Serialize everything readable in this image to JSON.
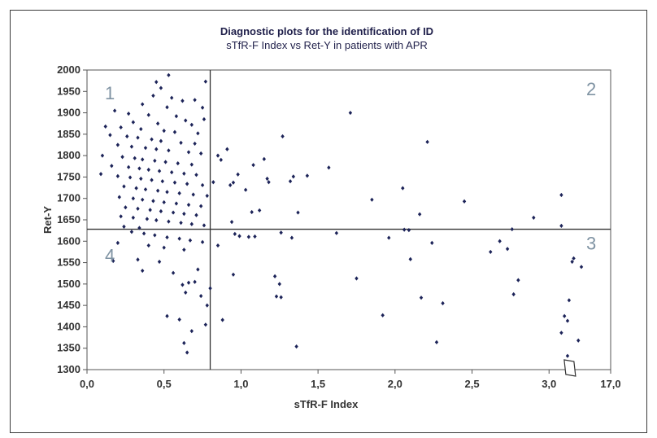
{
  "chart_data": {
    "type": "scatter",
    "title": "Diagnostic plots for the identification of ID",
    "subtitle": "sTfR-F Index vs Ret-Y in patients with APR",
    "xlabel": "sTfR-F Index",
    "ylabel": "Ret-Y",
    "xlim": [
      0,
      3.4
    ],
    "ylim": [
      1300,
      2000
    ],
    "x_scale_note": "axis break between 3.0 and 3.4; last tick printed as 17,0",
    "x_ticks": [
      "0,0",
      "0,5",
      "1,0",
      "1,5",
      "2,0",
      "2,5",
      "3,0",
      "17,0"
    ],
    "y_ticks": [
      "1300",
      "1350",
      "1400",
      "1450",
      "1500",
      "1550",
      "1600",
      "1650",
      "1700",
      "1750",
      "1800",
      "1850",
      "1900",
      "1950",
      "2000"
    ],
    "cutoff_x": 0.8,
    "cutoff_y": 1628,
    "quadrants": [
      "1",
      "2",
      "3",
      "4"
    ],
    "colors": {
      "points": "#1c2358",
      "lines": "#333333",
      "quadrant_labels": "#7f93a3",
      "title": "#1f1f4a"
    },
    "grid": false,
    "legend": "none",
    "points": [
      [
        0.53,
        1988
      ],
      [
        0.45,
        1972
      ],
      [
        0.77,
        1973
      ],
      [
        0.48,
        1958
      ],
      [
        0.43,
        1940
      ],
      [
        0.55,
        1935
      ],
      [
        0.62,
        1928
      ],
      [
        0.7,
        1930
      ],
      [
        0.36,
        1920
      ],
      [
        0.52,
        1913
      ],
      [
        0.75,
        1912
      ],
      [
        0.18,
        1905
      ],
      [
        0.27,
        1898
      ],
      [
        0.4,
        1895
      ],
      [
        0.58,
        1892
      ],
      [
        0.64,
        1882
      ],
      [
        0.76,
        1885
      ],
      [
        0.3,
        1878
      ],
      [
        0.46,
        1875
      ],
      [
        0.68,
        1872
      ],
      [
        0.12,
        1868
      ],
      [
        0.22,
        1866
      ],
      [
        0.35,
        1862
      ],
      [
        0.5,
        1858
      ],
      [
        0.57,
        1855
      ],
      [
        0.72,
        1852
      ],
      [
        0.15,
        1848
      ],
      [
        0.26,
        1845
      ],
      [
        0.33,
        1842
      ],
      [
        0.42,
        1838
      ],
      [
        0.48,
        1834
      ],
      [
        0.61,
        1830
      ],
      [
        0.7,
        1828
      ],
      [
        0.2,
        1825
      ],
      [
        0.29,
        1821
      ],
      [
        0.38,
        1818
      ],
      [
        0.45,
        1815
      ],
      [
        0.53,
        1812
      ],
      [
        0.66,
        1808
      ],
      [
        0.74,
        1805
      ],
      [
        0.1,
        1800
      ],
      [
        0.23,
        1797
      ],
      [
        0.31,
        1794
      ],
      [
        0.36,
        1791
      ],
      [
        0.44,
        1788
      ],
      [
        0.51,
        1785
      ],
      [
        0.59,
        1782
      ],
      [
        0.68,
        1779
      ],
      [
        0.16,
        1776
      ],
      [
        0.27,
        1773
      ],
      [
        0.34,
        1770
      ],
      [
        0.4,
        1767
      ],
      [
        0.47,
        1764
      ],
      [
        0.55,
        1761
      ],
      [
        0.63,
        1758
      ],
      [
        0.71,
        1755
      ],
      [
        0.09,
        1757
      ],
      [
        0.2,
        1752
      ],
      [
        0.28,
        1749
      ],
      [
        0.35,
        1746
      ],
      [
        0.42,
        1743
      ],
      [
        0.49,
        1740
      ],
      [
        0.57,
        1737
      ],
      [
        0.65,
        1734
      ],
      [
        0.75,
        1731
      ],
      [
        0.24,
        1728
      ],
      [
        0.32,
        1724
      ],
      [
        0.38,
        1721
      ],
      [
        0.46,
        1718
      ],
      [
        0.52,
        1715
      ],
      [
        0.6,
        1712
      ],
      [
        0.69,
        1709
      ],
      [
        0.78,
        1706
      ],
      [
        0.21,
        1703
      ],
      [
        0.3,
        1700
      ],
      [
        0.36,
        1697
      ],
      [
        0.43,
        1694
      ],
      [
        0.5,
        1691
      ],
      [
        0.58,
        1688
      ],
      [
        0.66,
        1685
      ],
      [
        0.74,
        1682
      ],
      [
        0.25,
        1679
      ],
      [
        0.33,
        1676
      ],
      [
        0.41,
        1673
      ],
      [
        0.48,
        1670
      ],
      [
        0.56,
        1667
      ],
      [
        0.63,
        1664
      ],
      [
        0.71,
        1661
      ],
      [
        0.22,
        1658
      ],
      [
        0.3,
        1655
      ],
      [
        0.39,
        1652
      ],
      [
        0.45,
        1649
      ],
      [
        0.53,
        1646
      ],
      [
        0.61,
        1643
      ],
      [
        0.68,
        1640
      ],
      [
        0.76,
        1637
      ],
      [
        0.24,
        1634
      ],
      [
        0.34,
        1631
      ],
      [
        0.29,
        1622
      ],
      [
        0.37,
        1618
      ],
      [
        0.44,
        1614
      ],
      [
        0.52,
        1609
      ],
      [
        0.6,
        1606
      ],
      [
        0.67,
        1602
      ],
      [
        0.75,
        1598
      ],
      [
        0.2,
        1596
      ],
      [
        0.4,
        1590
      ],
      [
        0.5,
        1585
      ],
      [
        0.63,
        1580
      ],
      [
        0.17,
        1554
      ],
      [
        0.33,
        1557
      ],
      [
        0.47,
        1552
      ],
      [
        0.36,
        1531
      ],
      [
        0.56,
        1526
      ],
      [
        0.72,
        1534
      ],
      [
        0.66,
        1503
      ],
      [
        0.62,
        1498
      ],
      [
        0.7,
        1505
      ],
      [
        0.64,
        1480
      ],
      [
        0.74,
        1472
      ],
      [
        0.78,
        1450
      ],
      [
        0.52,
        1425
      ],
      [
        0.6,
        1417
      ],
      [
        0.68,
        1390
      ],
      [
        0.63,
        1362
      ],
      [
        0.65,
        1340
      ],
      [
        0.77,
        1405
      ],
      [
        0.8,
        1490
      ],
      [
        0.82,
        1738
      ],
      [
        0.85,
        1800
      ],
      [
        0.87,
        1790
      ],
      [
        0.91,
        1815
      ],
      [
        0.93,
        1731
      ],
      [
        0.95,
        1737
      ],
      [
        0.98,
        1756
      ],
      [
        1.03,
        1720
      ],
      [
        1.08,
        1778
      ],
      [
        1.15,
        1792
      ],
      [
        1.17,
        1746
      ],
      [
        1.18,
        1738
      ],
      [
        1.12,
        1672
      ],
      [
        1.07,
        1668
      ],
      [
        0.94,
        1645
      ],
      [
        0.96,
        1617
      ],
      [
        0.99,
        1612
      ],
      [
        1.05,
        1610
      ],
      [
        1.09,
        1611
      ],
      [
        0.85,
        1590
      ],
      [
        0.95,
        1522
      ],
      [
        0.88,
        1416
      ],
      [
        1.22,
        1518
      ],
      [
        1.23,
        1471
      ],
      [
        1.25,
        1500
      ],
      [
        1.26,
        1469
      ],
      [
        1.27,
        1845
      ],
      [
        1.32,
        1740
      ],
      [
        1.34,
        1751
      ],
      [
        1.37,
        1667
      ],
      [
        1.26,
        1620
      ],
      [
        1.33,
        1608
      ],
      [
        1.43,
        1753
      ],
      [
        1.57,
        1772
      ],
      [
        1.62,
        1619
      ],
      [
        1.71,
        1900
      ],
      [
        1.36,
        1354
      ],
      [
        1.75,
        1513
      ],
      [
        1.85,
        1697
      ],
      [
        1.92,
        1427
      ],
      [
        1.96,
        1608
      ],
      [
        2.05,
        1724
      ],
      [
        2.06,
        1627
      ],
      [
        2.09,
        1626
      ],
      [
        2.1,
        1558
      ],
      [
        2.16,
        1663
      ],
      [
        2.17,
        1468
      ],
      [
        2.21,
        1832
      ],
      [
        2.24,
        1596
      ],
      [
        2.27,
        1364
      ],
      [
        2.31,
        1455
      ],
      [
        2.45,
        1693
      ],
      [
        2.62,
        1575
      ],
      [
        2.68,
        1600
      ],
      [
        2.73,
        1582
      ],
      [
        2.76,
        1628
      ],
      [
        2.77,
        1476
      ],
      [
        2.8,
        1509
      ],
      [
        2.9,
        1655
      ],
      [
        3.08,
        1708
      ],
      [
        3.08,
        1636
      ],
      [
        3.08,
        1386
      ],
      [
        3.1,
        1425
      ],
      [
        3.12,
        1414
      ],
      [
        3.13,
        1462
      ],
      [
        3.15,
        1552
      ],
      [
        3.16,
        1560
      ],
      [
        3.19,
        1368
      ],
      [
        3.21,
        1540
      ],
      [
        3.12,
        1332
      ]
    ]
  }
}
